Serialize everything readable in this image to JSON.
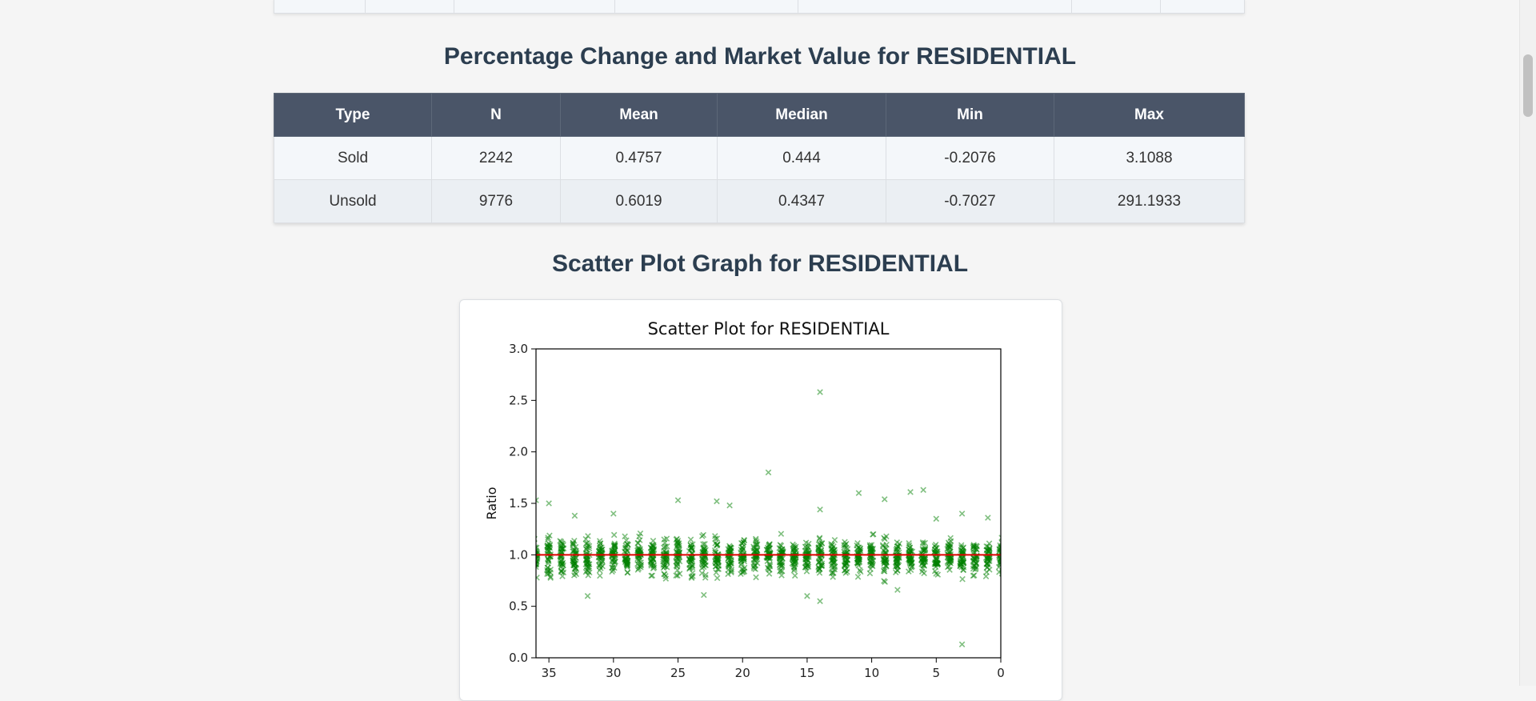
{
  "sections": {
    "pct_title": "Percentage Change and Market Value for RESIDENTIAL",
    "scatter_title": "Scatter Plot Graph for RESIDENTIAL"
  },
  "stats_table": {
    "headers": [
      "Type",
      "N",
      "Mean",
      "Median",
      "Min",
      "Max"
    ],
    "rows": [
      [
        "Sold",
        "2242",
        "0.4757",
        "0.444",
        "-0.2076",
        "3.1088"
      ],
      [
        "Unsold",
        "9776",
        "0.6019",
        "0.4347",
        "-0.7027",
        "291.1933"
      ]
    ]
  },
  "chart_data": {
    "type": "scatter",
    "title": "Scatter Plot for RESIDENTIAL",
    "xlabel": "",
    "ylabel": "Ratio",
    "xlim": [
      36,
      0
    ],
    "ylim": [
      0,
      3
    ],
    "x_ticks": [
      35,
      30,
      25,
      20,
      15,
      10,
      5,
      0
    ],
    "y_ticks": [
      0.0,
      0.5,
      1.0,
      1.5,
      2.0,
      2.5,
      3.0
    ],
    "y_tick_labels": [
      "0.0",
      "0.5",
      "1.0",
      "1.5",
      "2.0",
      "2.5",
      "3.0"
    ],
    "reference_line": {
      "y": 1.0,
      "color": "#e00000"
    },
    "marker": "x",
    "point_color": "#008000",
    "x_positions": [
      36,
      35,
      34,
      33,
      32,
      31,
      30,
      29,
      28,
      27,
      26,
      25,
      24,
      23,
      22,
      21,
      20,
      19,
      18,
      17,
      16,
      15,
      14,
      13,
      12,
      11,
      10,
      9,
      8,
      7,
      6,
      5,
      4,
      3,
      2,
      1,
      0
    ],
    "outliers": [
      {
        "x": 14,
        "y": 2.58
      },
      {
        "x": 18,
        "y": 1.8
      },
      {
        "x": 11,
        "y": 1.6
      },
      {
        "x": 6,
        "y": 1.63
      },
      {
        "x": 7,
        "y": 1.61
      },
      {
        "x": 9,
        "y": 1.54
      },
      {
        "x": 22,
        "y": 1.52
      },
      {
        "x": 25,
        "y": 1.53
      },
      {
        "x": 21,
        "y": 1.48
      },
      {
        "x": 36,
        "y": 1.53
      },
      {
        "x": 35,
        "y": 1.5
      },
      {
        "x": 30,
        "y": 1.4
      },
      {
        "x": 33,
        "y": 1.38
      },
      {
        "x": 3,
        "y": 1.4
      },
      {
        "x": 14,
        "y": 1.44
      },
      {
        "x": 32,
        "y": 0.6
      },
      {
        "x": 23,
        "y": 0.61
      },
      {
        "x": 15,
        "y": 0.6
      },
      {
        "x": 14,
        "y": 0.55
      },
      {
        "x": 8,
        "y": 0.66
      },
      {
        "x": 3,
        "y": 0.13
      },
      {
        "x": 1,
        "y": 1.36
      },
      {
        "x": 5,
        "y": 1.35
      }
    ]
  }
}
